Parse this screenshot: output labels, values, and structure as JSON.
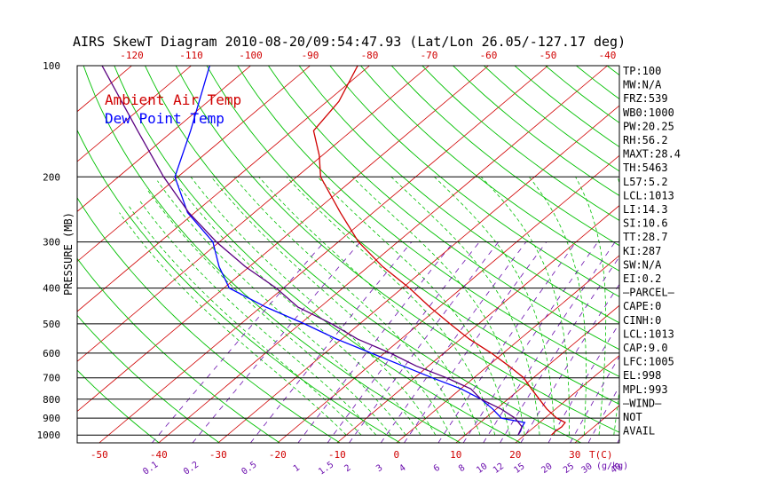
{
  "chart_data": {
    "type": "line",
    "title": "AIRS SkewT Diagram 2010-08-20/09:54:47.93 (Lat/Lon 26.05/-127.17 deg)",
    "ylabel": "PRESSURE (MB)",
    "xlabel": "T(C)",
    "mixing_ratio_unit": "(g/kg)",
    "y_scale": "log",
    "ylim": [
      1050,
      100
    ],
    "pressure_ticks": [
      100,
      200,
      300,
      400,
      500,
      600,
      700,
      800,
      900,
      1000
    ],
    "top_temp_ticks": [
      -120,
      -110,
      -100,
      -90,
      -80,
      -70,
      -60,
      -50,
      -40
    ],
    "bottom_temp_ticks": [
      -50,
      -40,
      -30,
      -20,
      -10,
      0,
      10,
      20,
      30
    ],
    "mixing_ratio_labels": [
      "0.1",
      "0.2",
      "0.5",
      "1",
      "1.5",
      "2",
      "3",
      "4",
      "6",
      "8",
      "10",
      "12",
      "15",
      "20",
      "25",
      "30",
      "40"
    ],
    "legend": [
      "Ambient Air Temp",
      "Dew Point Temp"
    ],
    "colors": {
      "ambient": "#d00000",
      "dewpoint": "#0000ff",
      "parcel": "#5a0080",
      "isotherm": "#d00000",
      "dry_adiabat": "#00c000",
      "moist_adiabat": "#00c000",
      "mixing_ratio": "#6a0dad",
      "isobar": "#000000"
    },
    "series": [
      {
        "name": "Ambient Air Temp",
        "points": [
          {
            "p": 1000,
            "t": 24.5
          },
          {
            "p": 975,
            "t": 24.4
          },
          {
            "p": 950,
            "t": 24.6
          },
          {
            "p": 925,
            "t": 24.3
          },
          {
            "p": 900,
            "t": 22.0
          },
          {
            "p": 850,
            "t": 18.5
          },
          {
            "p": 800,
            "t": 15.3
          },
          {
            "p": 750,
            "t": 11.9
          },
          {
            "p": 700,
            "t": 8.4
          },
          {
            "p": 650,
            "t": 3.5
          },
          {
            "p": 600,
            "t": -2.0
          },
          {
            "p": 550,
            "t": -8.5
          },
          {
            "p": 500,
            "t": -14.8
          },
          {
            "p": 450,
            "t": -21.6
          },
          {
            "p": 400,
            "t": -28.8
          },
          {
            "p": 350,
            "t": -37.6
          },
          {
            "p": 300,
            "t": -46.6
          },
          {
            "p": 250,
            "t": -55.5
          },
          {
            "p": 200,
            "t": -66.0
          },
          {
            "p": 175,
            "t": -70.5
          },
          {
            "p": 150,
            "t": -76.4
          },
          {
            "p": 125,
            "t": -78.0
          },
          {
            "p": 100,
            "t": -82.0
          }
        ]
      },
      {
        "name": "Dew Point Temp",
        "points": [
          {
            "p": 1000,
            "t": 18.9
          },
          {
            "p": 975,
            "t": 18.5
          },
          {
            "p": 950,
            "t": 17.9
          },
          {
            "p": 925,
            "t": 17.5
          },
          {
            "p": 900,
            "t": 12.7
          },
          {
            "p": 850,
            "t": 9.4
          },
          {
            "p": 800,
            "t": 5.5
          },
          {
            "p": 750,
            "t": 0.1
          },
          {
            "p": 700,
            "t": -7.0
          },
          {
            "p": 650,
            "t": -14.3
          },
          {
            "p": 600,
            "t": -22.2
          },
          {
            "p": 550,
            "t": -30.8
          },
          {
            "p": 500,
            "t": -39.3
          },
          {
            "p": 450,
            "t": -49.2
          },
          {
            "p": 400,
            "t": -59.1
          },
          {
            "p": 350,
            "t": -65.1
          },
          {
            "p": 300,
            "t": -71.1
          },
          {
            "p": 250,
            "t": -81.2
          },
          {
            "p": 200,
            "t": -90.5
          },
          {
            "p": 150,
            "t": -97.1
          },
          {
            "p": 100,
            "t": -106.9
          }
        ]
      },
      {
        "name": "Parcel",
        "points": [
          {
            "p": 1000,
            "t": 18.9
          },
          {
            "p": 950,
            "t": 17.9
          },
          {
            "p": 900,
            "t": 15.0
          },
          {
            "p": 850,
            "t": 10.8
          },
          {
            "p": 800,
            "t": 5.5
          },
          {
            "p": 750,
            "t": 1.7
          },
          {
            "p": 700,
            "t": -4.6
          },
          {
            "p": 650,
            "t": -12.1
          },
          {
            "p": 600,
            "t": -19.0
          },
          {
            "p": 550,
            "t": -27.3
          },
          {
            "p": 500,
            "t": -34.7
          },
          {
            "p": 450,
            "t": -43.8
          },
          {
            "p": 400,
            "t": -51.2
          },
          {
            "p": 350,
            "t": -60.7
          },
          {
            "p": 300,
            "t": -70.5
          },
          {
            "p": 250,
            "t": -81.0
          },
          {
            "p": 200,
            "t": -92.4
          },
          {
            "p": 150,
            "t": -106.0
          },
          {
            "p": 100,
            "t": -125.0
          }
        ]
      }
    ],
    "side_panel": [
      "TP:100",
      "MW:N/A",
      "FRZ:539",
      "WB0:1000",
      "PW:20.25",
      "RH:56.2",
      "MAXT:28.4",
      "TH:5463",
      "L57:5.2",
      "LCL:1013",
      "LI:14.3",
      "SI:10.6",
      "TT:28.7",
      "KI:287",
      "SW:N/A",
      "EI:0.2",
      "—PARCEL—",
      "CAPE:0",
      "CINH:0",
      "LCL:1013",
      "CAP:9.0",
      "LFC:1005",
      "EL:998",
      "MPL:993",
      "—WIND—",
      "NOT",
      "AVAIL"
    ]
  }
}
